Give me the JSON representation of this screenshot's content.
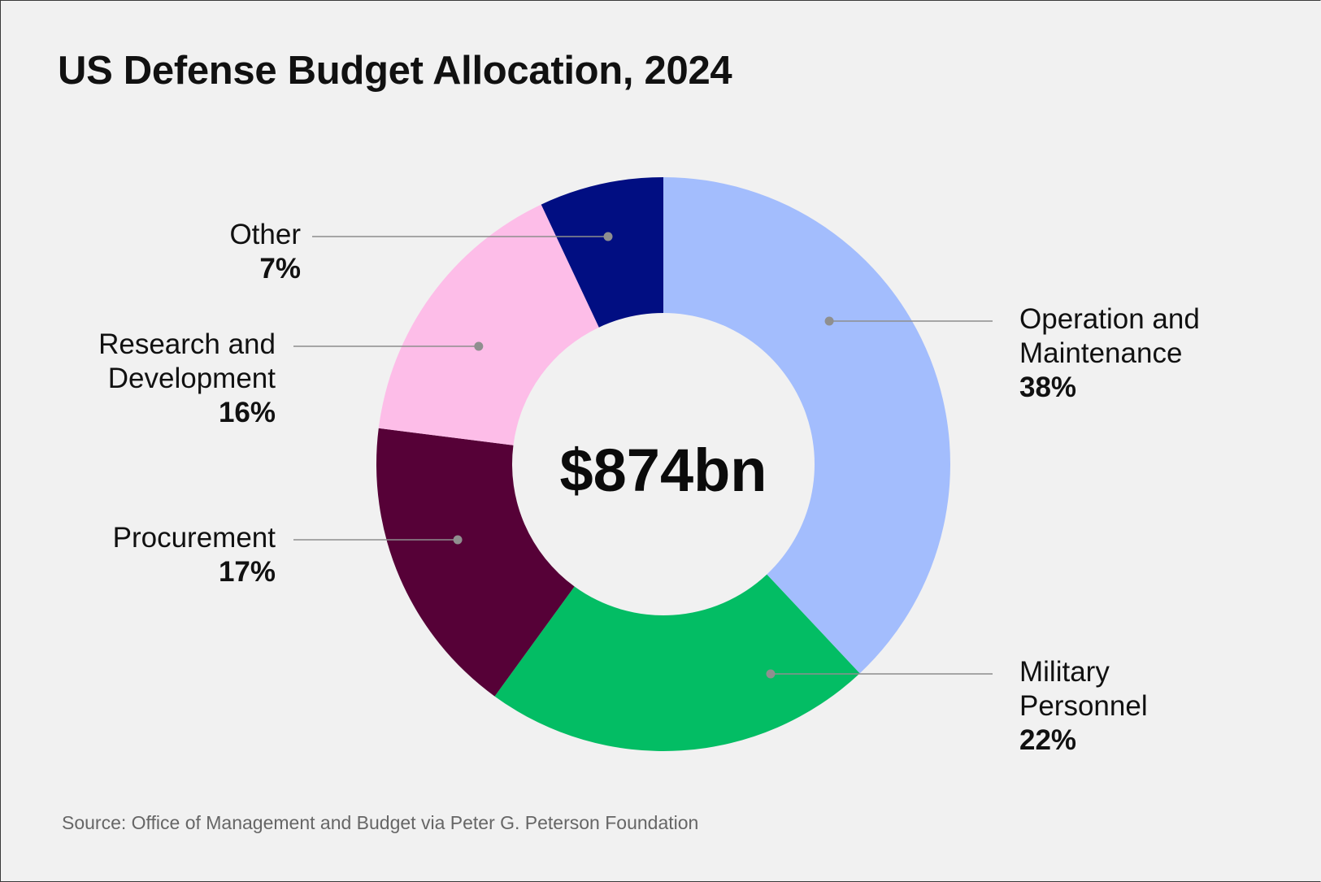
{
  "title": "US Defense Budget Allocation, 2024",
  "source": "Source: Office of Management and Budget via Peter G. Peterson Foundation",
  "chart_data": {
    "type": "pie",
    "variant": "donut",
    "title": "US Defense Budget Allocation, 2024",
    "center_label": "$874bn",
    "slices": [
      {
        "lines": [
          "Operation and",
          "Maintenance"
        ],
        "pct_label": "38%",
        "value": 38,
        "color": "#a3bdfd"
      },
      {
        "lines": [
          "Military",
          "Personnel"
        ],
        "pct_label": "22%",
        "value": 22,
        "color": "#03bd64"
      },
      {
        "lines": [
          "Procurement"
        ],
        "pct_label": "17%",
        "value": 17,
        "color": "#560137"
      },
      {
        "lines": [
          "Research and",
          "Development"
        ],
        "pct_label": "16%",
        "value": 16,
        "color": "#fdbde8"
      },
      {
        "lines": [
          "Other"
        ],
        "pct_label": "7%",
        "value": 7,
        "color": "#010e82"
      }
    ]
  }
}
